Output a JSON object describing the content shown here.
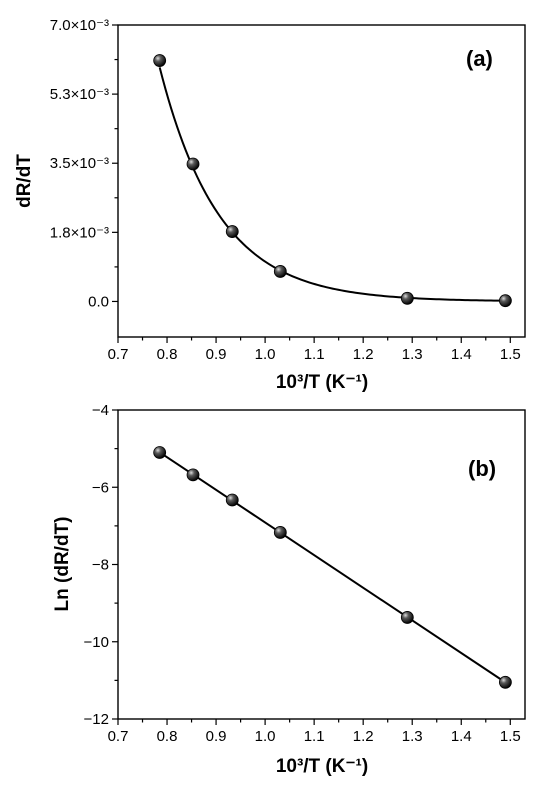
{
  "chart_data": [
    {
      "type": "scatter",
      "panel_label": "(a)",
      "xlabel": "10³/T (K⁻¹)",
      "ylabel": "dR/dT",
      "xlim": [
        0.7,
        1.53
      ],
      "ylim": [
        -0.0009,
        0.007
      ],
      "x_ticks": [
        "0.7",
        "0.8",
        "0.9",
        "1.0",
        "1.1",
        "1.2",
        "1.3",
        "1.4",
        "1.5"
      ],
      "y_ticks": [
        {
          "value": 0.0,
          "label": "0.0"
        },
        {
          "value": 0.00175,
          "label": "1.8×10⁻³"
        },
        {
          "value": 0.0035,
          "label": "3.5×10⁻³"
        },
        {
          "value": 0.00525,
          "label": "5.3×10⁻³"
        },
        {
          "value": 0.007,
          "label": "7.0×10⁻³"
        }
      ],
      "series": [
        {
          "x": [
            0.785,
            0.853,
            0.933,
            1.031,
            1.29,
            1.49
          ],
          "y": [
            0.0061,
            0.00348,
            0.00177,
            0.00076,
            8e-05,
            2e-05
          ],
          "fit": "exponential"
        }
      ]
    },
    {
      "type": "scatter",
      "panel_label": "(b)",
      "xlabel": "10³/T (K⁻¹)",
      "ylabel": "Ln (dR/dT)",
      "xlim": [
        0.7,
        1.53
      ],
      "ylim": [
        -12,
        -4
      ],
      "x_ticks": [
        "0.7",
        "0.8",
        "0.9",
        "1.0",
        "1.1",
        "1.2",
        "1.3",
        "1.4",
        "1.5"
      ],
      "y_ticks": [
        {
          "value": -12,
          "label": "−12"
        },
        {
          "value": -10,
          "label": "−10"
        },
        {
          "value": -8,
          "label": "−8"
        },
        {
          "value": -6,
          "label": "−6"
        },
        {
          "value": -4,
          "label": "−4"
        }
      ],
      "series": [
        {
          "x": [
            0.785,
            0.853,
            0.933,
            1.031,
            1.29,
            1.49
          ],
          "y": [
            -5.1,
            -5.68,
            -6.33,
            -7.17,
            -9.37,
            -11.05
          ],
          "fit": "linear"
        }
      ]
    }
  ]
}
